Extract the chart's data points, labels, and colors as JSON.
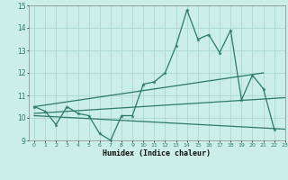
{
  "xlabel": "Humidex (Indice chaleur)",
  "bg_color": "#cceee8",
  "grid_color": "#aad8d0",
  "line_color": "#2a7a6a",
  "x_values": [
    0,
    1,
    2,
    3,
    4,
    5,
    6,
    7,
    8,
    9,
    10,
    11,
    12,
    13,
    14,
    15,
    16,
    17,
    18,
    19,
    20,
    21,
    22,
    23
  ],
  "series1": [
    10.5,
    10.3,
    9.7,
    10.5,
    10.2,
    10.1,
    9.3,
    9.0,
    10.1,
    10.1,
    11.5,
    11.6,
    12.0,
    13.2,
    14.8,
    13.5,
    13.7,
    12.9,
    13.9,
    10.8,
    11.9,
    11.3,
    9.5,
    null
  ],
  "trend1_x": [
    0,
    21
  ],
  "trend1_y": [
    10.5,
    12.0
  ],
  "trend2_x": [
    0,
    23
  ],
  "trend2_y": [
    10.2,
    10.9
  ],
  "trend3_x": [
    0,
    23
  ],
  "trend3_y": [
    10.1,
    9.5
  ],
  "ylim": [
    9,
    15
  ],
  "xlim": [
    -0.5,
    23
  ],
  "yticks": [
    9,
    10,
    11,
    12,
    13,
    14,
    15
  ],
  "xticks": [
    0,
    1,
    2,
    3,
    4,
    5,
    6,
    7,
    8,
    9,
    10,
    11,
    12,
    13,
    14,
    15,
    16,
    17,
    18,
    19,
    20,
    21,
    22,
    23
  ]
}
